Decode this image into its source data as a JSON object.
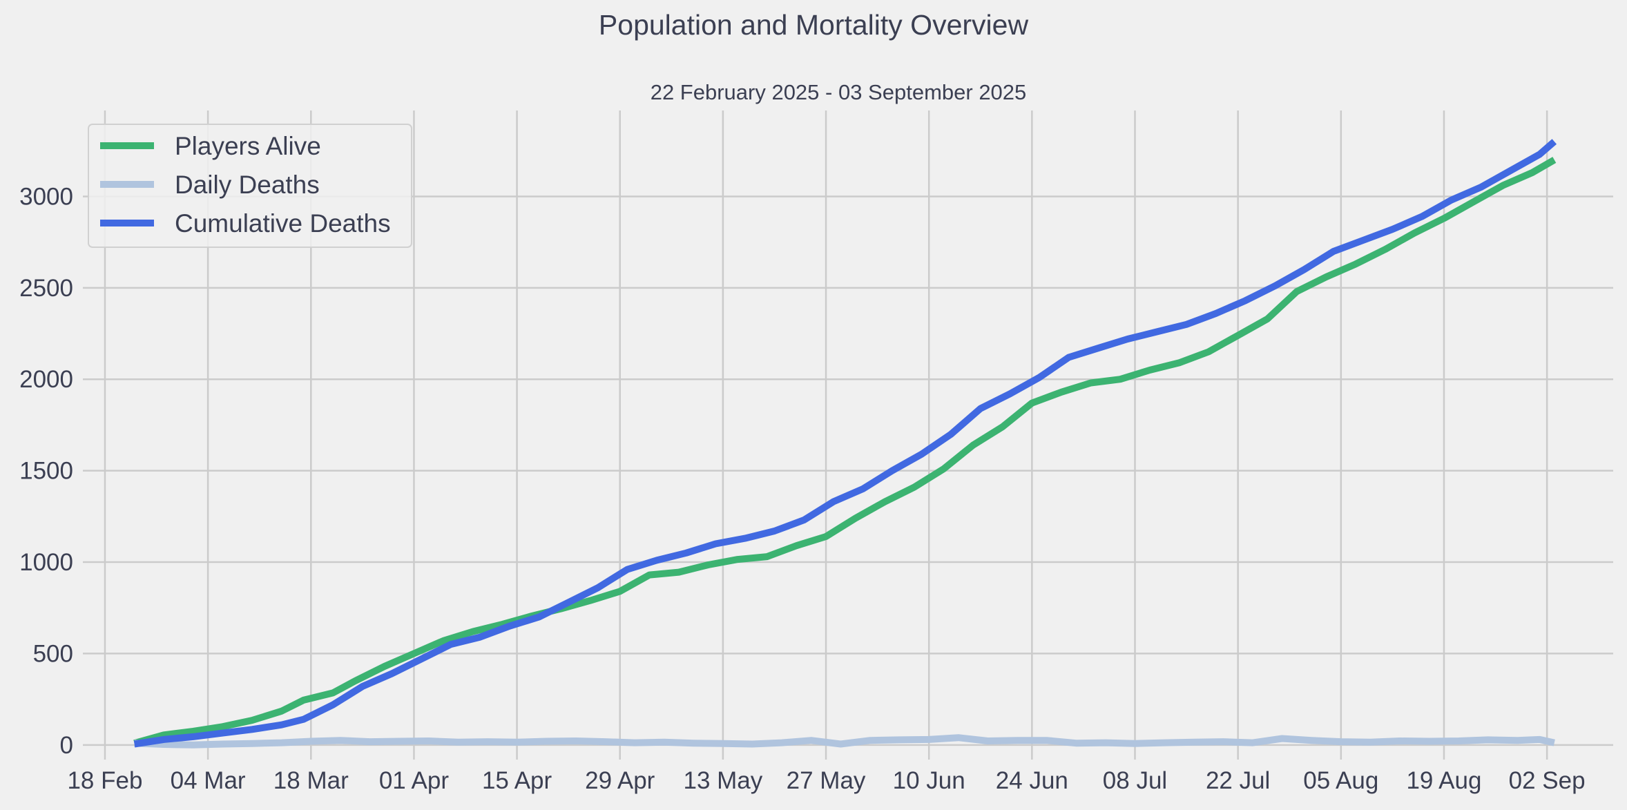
{
  "chart_data": {
    "type": "line",
    "title": "Population and Mortality Overview",
    "subtitle": "22 February 2025 - 03 September 2025",
    "xlabel": "",
    "ylabel": "",
    "x_range": [
      "2025-02-15",
      "2025-09-11"
    ],
    "ylim": [
      -80,
      3470
    ],
    "x_ticks": [
      {
        "date": "2025-02-18",
        "label": "18 Feb"
      },
      {
        "date": "2025-03-04",
        "label": "04 Mar"
      },
      {
        "date": "2025-03-18",
        "label": "18 Mar"
      },
      {
        "date": "2025-04-01",
        "label": "01 Apr"
      },
      {
        "date": "2025-04-15",
        "label": "15 Apr"
      },
      {
        "date": "2025-04-29",
        "label": "29 Apr"
      },
      {
        "date": "2025-05-13",
        "label": "13 May"
      },
      {
        "date": "2025-05-27",
        "label": "27 May"
      },
      {
        "date": "2025-06-10",
        "label": "10 Jun"
      },
      {
        "date": "2025-06-24",
        "label": "24 Jun"
      },
      {
        "date": "2025-07-08",
        "label": "08 Jul"
      },
      {
        "date": "2025-07-22",
        "label": "22 Jul"
      },
      {
        "date": "2025-08-05",
        "label": "05 Aug"
      },
      {
        "date": "2025-08-19",
        "label": "19 Aug"
      },
      {
        "date": "2025-09-02",
        "label": "02 Sep"
      }
    ],
    "y_ticks": [
      {
        "value": 0,
        "label": "0"
      },
      {
        "value": 500,
        "label": "500"
      },
      {
        "value": 1000,
        "label": "1000"
      },
      {
        "value": 1500,
        "label": "1500"
      },
      {
        "value": 2000,
        "label": "2000"
      },
      {
        "value": 2500,
        "label": "2500"
      },
      {
        "value": 3000,
        "label": "3000"
      }
    ],
    "grid": true,
    "legend_position": "top-left",
    "series": [
      {
        "name": "Players Alive",
        "color": "#3cb371",
        "points": [
          [
            "2025-02-22",
            10
          ],
          [
            "2025-02-26",
            55
          ],
          [
            "2025-03-02",
            75
          ],
          [
            "2025-03-06",
            100
          ],
          [
            "2025-03-10",
            135
          ],
          [
            "2025-03-14",
            185
          ],
          [
            "2025-03-17",
            245
          ],
          [
            "2025-03-21",
            285
          ],
          [
            "2025-03-24",
            350
          ],
          [
            "2025-03-28",
            430
          ],
          [
            "2025-04-01",
            500
          ],
          [
            "2025-04-05",
            570
          ],
          [
            "2025-04-09",
            620
          ],
          [
            "2025-04-13",
            660
          ],
          [
            "2025-04-17",
            705
          ],
          [
            "2025-04-21",
            745
          ],
          [
            "2025-04-25",
            790
          ],
          [
            "2025-04-29",
            840
          ],
          [
            "2025-05-03",
            930
          ],
          [
            "2025-05-07",
            945
          ],
          [
            "2025-05-11",
            985
          ],
          [
            "2025-05-15",
            1015
          ],
          [
            "2025-05-19",
            1030
          ],
          [
            "2025-05-23",
            1090
          ],
          [
            "2025-05-27",
            1140
          ],
          [
            "2025-05-31",
            1240
          ],
          [
            "2025-06-04",
            1330
          ],
          [
            "2025-06-08",
            1410
          ],
          [
            "2025-06-12",
            1510
          ],
          [
            "2025-06-16",
            1640
          ],
          [
            "2025-06-20",
            1740
          ],
          [
            "2025-06-24",
            1870
          ],
          [
            "2025-06-28",
            1930
          ],
          [
            "2025-07-02",
            1980
          ],
          [
            "2025-07-06",
            2000
          ],
          [
            "2025-07-10",
            2050
          ],
          [
            "2025-07-14",
            2090
          ],
          [
            "2025-07-18",
            2150
          ],
          [
            "2025-07-22",
            2240
          ],
          [
            "2025-07-26",
            2330
          ],
          [
            "2025-07-30",
            2480
          ],
          [
            "2025-08-03",
            2560
          ],
          [
            "2025-08-07",
            2630
          ],
          [
            "2025-08-11",
            2710
          ],
          [
            "2025-08-15",
            2800
          ],
          [
            "2025-08-19",
            2880
          ],
          [
            "2025-08-23",
            2970
          ],
          [
            "2025-08-27",
            3060
          ],
          [
            "2025-08-31",
            3130
          ],
          [
            "2025-09-03",
            3200
          ]
        ]
      },
      {
        "name": "Daily Deaths",
        "color": "#b0c4de",
        "points": [
          [
            "2025-02-22",
            10
          ],
          [
            "2025-02-26",
            3
          ],
          [
            "2025-03-02",
            0
          ],
          [
            "2025-03-06",
            5
          ],
          [
            "2025-03-10",
            8
          ],
          [
            "2025-03-14",
            12
          ],
          [
            "2025-03-18",
            20
          ],
          [
            "2025-03-22",
            25
          ],
          [
            "2025-03-26",
            18
          ],
          [
            "2025-03-30",
            20
          ],
          [
            "2025-04-03",
            22
          ],
          [
            "2025-04-07",
            15
          ],
          [
            "2025-04-11",
            18
          ],
          [
            "2025-04-15",
            15
          ],
          [
            "2025-04-19",
            20
          ],
          [
            "2025-04-23",
            22
          ],
          [
            "2025-04-27",
            18
          ],
          [
            "2025-05-01",
            12
          ],
          [
            "2025-05-05",
            15
          ],
          [
            "2025-05-09",
            10
          ],
          [
            "2025-05-13",
            8
          ],
          [
            "2025-05-17",
            5
          ],
          [
            "2025-05-21",
            12
          ],
          [
            "2025-05-25",
            25
          ],
          [
            "2025-05-29",
            5
          ],
          [
            "2025-06-02",
            25
          ],
          [
            "2025-06-06",
            28
          ],
          [
            "2025-06-10",
            30
          ],
          [
            "2025-06-14",
            40
          ],
          [
            "2025-06-18",
            22
          ],
          [
            "2025-06-22",
            25
          ],
          [
            "2025-06-26",
            25
          ],
          [
            "2025-06-30",
            10
          ],
          [
            "2025-07-04",
            12
          ],
          [
            "2025-07-08",
            8
          ],
          [
            "2025-07-12",
            12
          ],
          [
            "2025-07-16",
            15
          ],
          [
            "2025-07-20",
            18
          ],
          [
            "2025-07-24",
            12
          ],
          [
            "2025-07-28",
            35
          ],
          [
            "2025-08-01",
            25
          ],
          [
            "2025-08-05",
            18
          ],
          [
            "2025-08-09",
            15
          ],
          [
            "2025-08-13",
            22
          ],
          [
            "2025-08-17",
            20
          ],
          [
            "2025-08-21",
            22
          ],
          [
            "2025-08-25",
            28
          ],
          [
            "2025-08-29",
            25
          ],
          [
            "2025-09-01",
            30
          ],
          [
            "2025-09-03",
            12
          ]
        ]
      },
      {
        "name": "Cumulative Deaths",
        "color": "#4169e1",
        "points": [
          [
            "2025-02-22",
            5
          ],
          [
            "2025-02-26",
            30
          ],
          [
            "2025-03-02",
            45
          ],
          [
            "2025-03-06",
            65
          ],
          [
            "2025-03-10",
            85
          ],
          [
            "2025-03-14",
            110
          ],
          [
            "2025-03-17",
            140
          ],
          [
            "2025-03-21",
            220
          ],
          [
            "2025-03-25",
            320
          ],
          [
            "2025-03-29",
            390
          ],
          [
            "2025-04-02",
            470
          ],
          [
            "2025-04-06",
            550
          ],
          [
            "2025-04-10",
            590
          ],
          [
            "2025-04-14",
            650
          ],
          [
            "2025-04-18",
            700
          ],
          [
            "2025-04-22",
            780
          ],
          [
            "2025-04-26",
            860
          ],
          [
            "2025-04-30",
            960
          ],
          [
            "2025-05-04",
            1010
          ],
          [
            "2025-05-08",
            1050
          ],
          [
            "2025-05-12",
            1100
          ],
          [
            "2025-05-16",
            1130
          ],
          [
            "2025-05-20",
            1170
          ],
          [
            "2025-05-24",
            1230
          ],
          [
            "2025-05-28",
            1330
          ],
          [
            "2025-06-01",
            1400
          ],
          [
            "2025-06-05",
            1500
          ],
          [
            "2025-06-09",
            1590
          ],
          [
            "2025-06-13",
            1700
          ],
          [
            "2025-06-17",
            1840
          ],
          [
            "2025-06-21",
            1920
          ],
          [
            "2025-06-25",
            2010
          ],
          [
            "2025-06-29",
            2120
          ],
          [
            "2025-07-03",
            2170
          ],
          [
            "2025-07-07",
            2220
          ],
          [
            "2025-07-11",
            2260
          ],
          [
            "2025-07-15",
            2300
          ],
          [
            "2025-07-19",
            2360
          ],
          [
            "2025-07-23",
            2430
          ],
          [
            "2025-07-27",
            2510
          ],
          [
            "2025-07-31",
            2600
          ],
          [
            "2025-08-04",
            2700
          ],
          [
            "2025-08-08",
            2760
          ],
          [
            "2025-08-12",
            2820
          ],
          [
            "2025-08-16",
            2890
          ],
          [
            "2025-08-20",
            2980
          ],
          [
            "2025-08-24",
            3050
          ],
          [
            "2025-08-28",
            3140
          ],
          [
            "2025-09-01",
            3230
          ],
          [
            "2025-09-03",
            3300
          ]
        ]
      }
    ]
  }
}
